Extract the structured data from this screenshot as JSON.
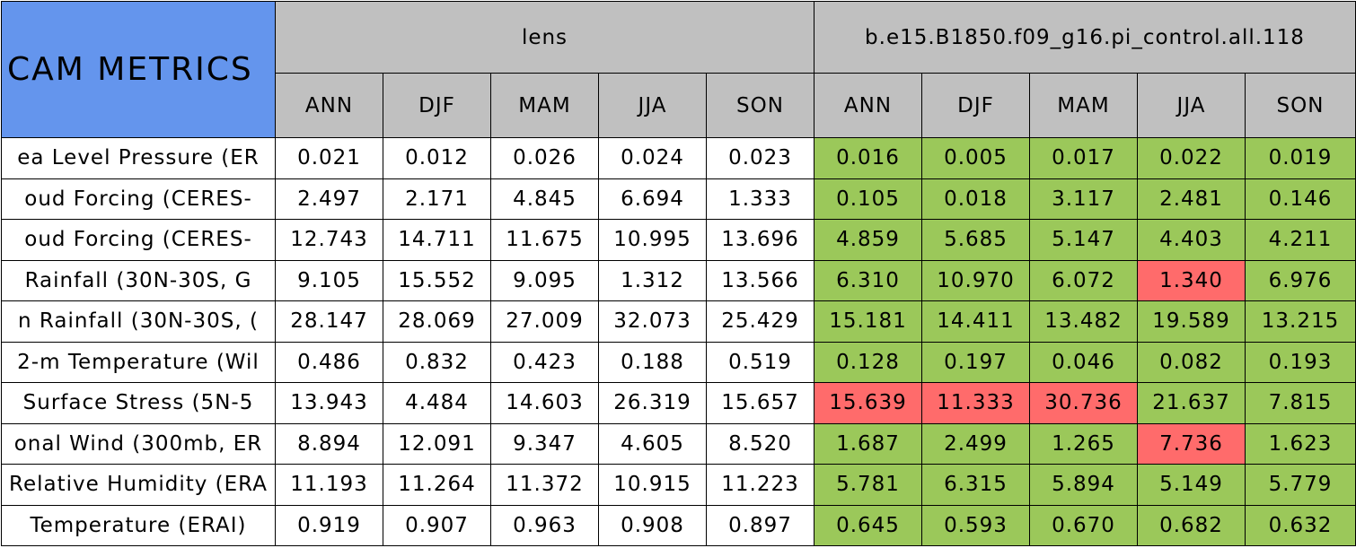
{
  "header": {
    "title": "CAM METRICS",
    "groups": [
      "lens",
      "b.e15.B1850.f09_g16.pi_control.all.118"
    ],
    "seasons": [
      "ANN",
      "DJF",
      "MAM",
      "JJA",
      "SON"
    ]
  },
  "rows": [
    {
      "label": "ea Level Pressure (ER",
      "lens": [
        "0.021",
        "0.012",
        "0.026",
        "0.024",
        "0.023"
      ],
      "control": [
        "0.016",
        "0.005",
        "0.017",
        "0.022",
        "0.019"
      ],
      "control_fills": [
        "#9bc85a",
        "#9bc85a",
        "#9bc85a",
        "#9bc85a",
        "#9bc85a"
      ]
    },
    {
      "label": "oud Forcing (CERES-",
      "lens": [
        "2.497",
        "2.171",
        "4.845",
        "6.694",
        "1.333"
      ],
      "control": [
        "0.105",
        "0.018",
        "3.117",
        "2.481",
        "0.146"
      ],
      "control_fills": [
        "#9bc85a",
        "#9bc85a",
        "#9bc85a",
        "#9bc85a",
        "#9bc85a"
      ]
    },
    {
      "label": "oud Forcing (CERES-",
      "lens": [
        "12.743",
        "14.711",
        "11.675",
        "10.995",
        "13.696"
      ],
      "control": [
        "4.859",
        "5.685",
        "5.147",
        "4.403",
        "4.211"
      ],
      "control_fills": [
        "#9bc85a",
        "#9bc85a",
        "#9bc85a",
        "#9bc85a",
        "#9bc85a"
      ]
    },
    {
      "label": "Rainfall (30N-30S, G",
      "lens": [
        "9.105",
        "15.552",
        "9.095",
        "1.312",
        "13.566"
      ],
      "control": [
        "6.310",
        "10.970",
        "6.072",
        "1.340",
        "6.976"
      ],
      "control_fills": [
        "#9bc85a",
        "#9bc85a",
        "#9bc85a",
        "#ff6b6b",
        "#9bc85a"
      ]
    },
    {
      "label": "n Rainfall (30N-30S, (",
      "lens": [
        "28.147",
        "28.069",
        "27.009",
        "32.073",
        "25.429"
      ],
      "control": [
        "15.181",
        "14.411",
        "13.482",
        "19.589",
        "13.215"
      ],
      "control_fills": [
        "#9bc85a",
        "#9bc85a",
        "#9bc85a",
        "#9bc85a",
        "#9bc85a"
      ]
    },
    {
      "label": "2-m Temperature (Wil",
      "lens": [
        "0.486",
        "0.832",
        "0.423",
        "0.188",
        "0.519"
      ],
      "control": [
        "0.128",
        "0.197",
        "0.046",
        "0.082",
        "0.193"
      ],
      "control_fills": [
        "#9bc85a",
        "#9bc85a",
        "#9bc85a",
        "#9bc85a",
        "#9bc85a"
      ]
    },
    {
      "label": "Surface Stress (5N-5",
      "lens": [
        "13.943",
        "4.484",
        "14.603",
        "26.319",
        "15.657"
      ],
      "control": [
        "15.639",
        "11.333",
        "30.736",
        "21.637",
        "7.815"
      ],
      "control_fills": [
        "#ff6b6b",
        "#ff6b6b",
        "#ff6b6b",
        "#9bc85a",
        "#9bc85a"
      ]
    },
    {
      "label": "onal Wind (300mb, ER",
      "lens": [
        "8.894",
        "12.091",
        "9.347",
        "4.605",
        "8.520"
      ],
      "control": [
        "1.687",
        "2.499",
        "1.265",
        "7.736",
        "1.623"
      ],
      "control_fills": [
        "#9bc85a",
        "#9bc85a",
        "#9bc85a",
        "#ff6b6b",
        "#9bc85a"
      ]
    },
    {
      "label": "Relative Humidity (ERA",
      "lens": [
        "11.193",
        "11.264",
        "11.372",
        "10.915",
        "11.223"
      ],
      "control": [
        "5.781",
        "6.315",
        "5.894",
        "5.149",
        "5.779"
      ],
      "control_fills": [
        "#9bc85a",
        "#9bc85a",
        "#9bc85a",
        "#9bc85a",
        "#9bc85a"
      ]
    },
    {
      "label": "Temperature (ERAI)",
      "lens": [
        "0.919",
        "0.907",
        "0.963",
        "0.908",
        "0.897"
      ],
      "control": [
        "0.645",
        "0.593",
        "0.670",
        "0.682",
        "0.632"
      ],
      "control_fills": [
        "#9bc85a",
        "#9bc85a",
        "#9bc85a",
        "#9bc85a",
        "#9bc85a"
      ]
    }
  ]
}
